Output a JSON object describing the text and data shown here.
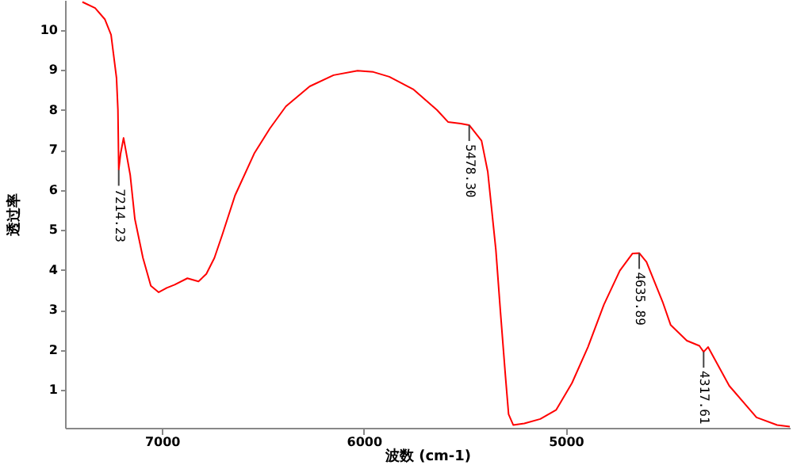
{
  "chart_data": {
    "type": "line",
    "xlabel": "波数 (cm-1)",
    "ylabel": "透过率",
    "xlim": [
      7480,
      3890
    ],
    "ylim": [
      0.05,
      10.75
    ],
    "xticks": [
      7000,
      6000,
      5000
    ],
    "yticks": [
      1,
      2,
      3,
      4,
      5,
      6,
      7,
      8,
      9,
      10
    ],
    "grid": false,
    "series": [
      {
        "color": "#ff0000",
        "x": [
          7394,
          7331,
          7283,
          7252,
          7240,
          7225,
          7218,
          7214,
          7205,
          7190,
          7157,
          7134,
          7094,
          7055,
          7016,
          6976,
          6937,
          6874,
          6819,
          6780,
          6740,
          6701,
          6638,
          6543,
          6465,
          6386,
          6268,
          6150,
          6031,
          5953,
          5874,
          5756,
          5638,
          5583,
          5520,
          5478,
          5417,
          5386,
          5346,
          5323,
          5299,
          5283,
          5260,
          5205,
          5126,
          5047,
          4969,
          4890,
          4811,
          4732,
          4669,
          4636,
          4600,
          4520,
          4480,
          4400,
          4338,
          4317,
          4295,
          4190,
          4055,
          3953,
          3890
        ],
        "values": [
          10.7,
          10.55,
          10.27,
          9.88,
          9.4,
          8.8,
          8.0,
          6.5,
          6.9,
          7.3,
          6.37,
          5.27,
          4.3,
          3.6,
          3.44,
          3.55,
          3.63,
          3.79,
          3.71,
          3.9,
          4.3,
          4.88,
          5.86,
          6.91,
          7.54,
          8.09,
          8.59,
          8.87,
          8.98,
          8.95,
          8.83,
          8.52,
          8.0,
          7.7,
          7.66,
          7.62,
          7.23,
          6.45,
          4.5,
          2.93,
          1.37,
          0.39,
          0.12,
          0.16,
          0.27,
          0.5,
          1.17,
          2.07,
          3.13,
          3.98,
          4.41,
          4.42,
          4.2,
          3.2,
          2.62,
          2.23,
          2.1,
          1.95,
          2.07,
          1.1,
          0.31,
          0.12,
          0.08
        ]
      }
    ],
    "annotations": [
      {
        "text": "7214.23",
        "x": 7214,
        "y": 6.5
      },
      {
        "text": "5478.30",
        "x": 5478,
        "y": 7.62
      },
      {
        "text": "4635.89",
        "x": 4636,
        "y": 4.42
      },
      {
        "text": "4317.61",
        "x": 4317,
        "y": 1.95
      }
    ]
  }
}
